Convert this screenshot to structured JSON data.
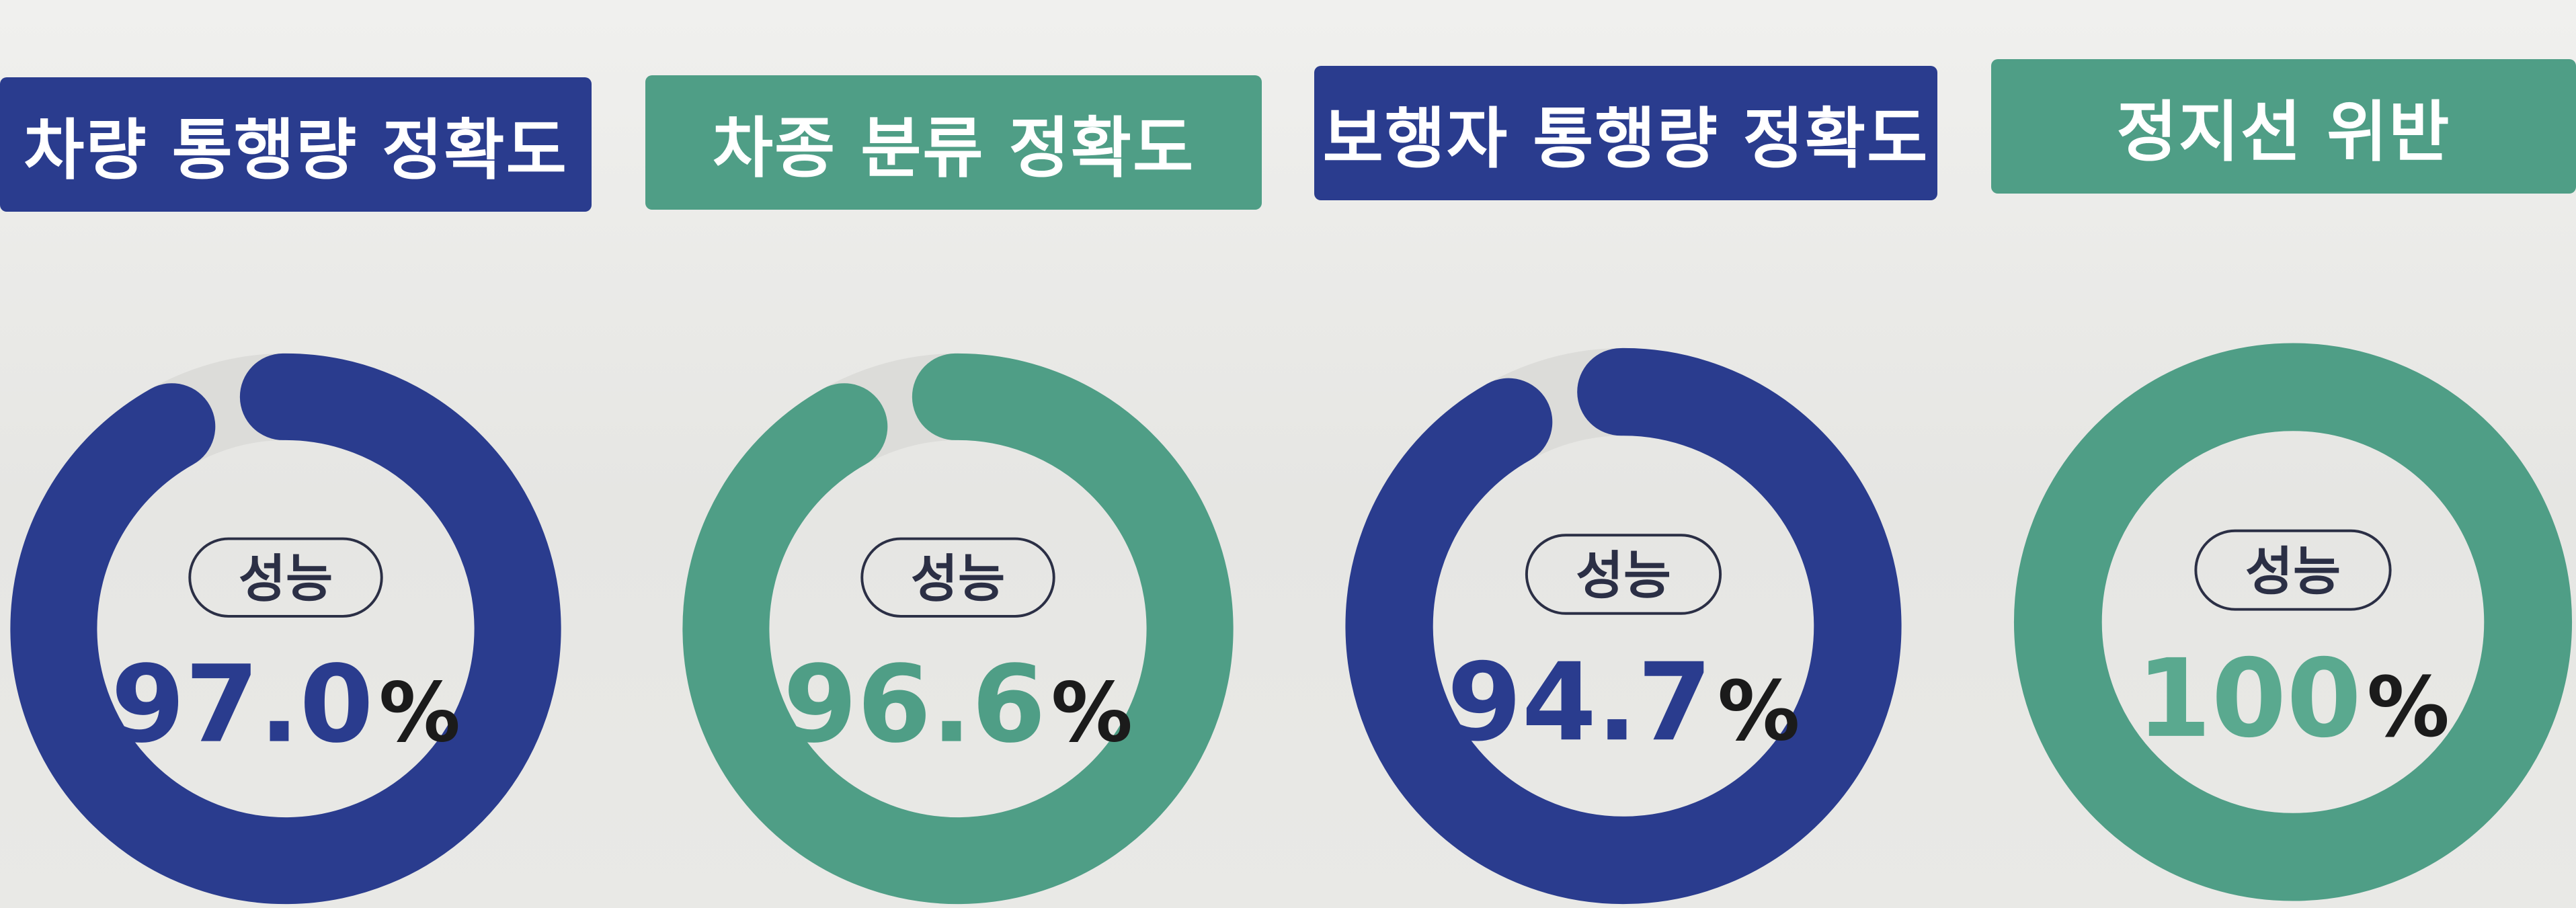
{
  "colors": {
    "navy": "#2a3c8e",
    "teal": "#4f9e86",
    "track": "#dcdcd9",
    "pill_border": "#2b2f45",
    "pill_text": "#2b2f45",
    "percent_sign": "#1b1b1b",
    "value_light_teal": "#5aa98f"
  },
  "chart_data": [
    {
      "type": "pie",
      "title": "차량 통행량 정확도",
      "label": "성능",
      "value": 97.0,
      "value_text": "97.0",
      "unit": "%",
      "color": "navy",
      "value_color": "navy"
    },
    {
      "type": "pie",
      "title": "차종 분류 정확도",
      "label": "성능",
      "value": 96.6,
      "value_text": "96.6",
      "unit": "%",
      "color": "teal",
      "value_color": "teal"
    },
    {
      "type": "pie",
      "title": "보행자 통행량 정확도",
      "label": "성능",
      "value": 94.7,
      "value_text": "94.7",
      "unit": "%",
      "color": "navy",
      "value_color": "navy"
    },
    {
      "type": "pie",
      "title": "정지선 위반",
      "label": "성능",
      "value": 100,
      "value_text": "100",
      "unit": "%",
      "color": "teal",
      "value_color": "value_light_teal"
    }
  ]
}
